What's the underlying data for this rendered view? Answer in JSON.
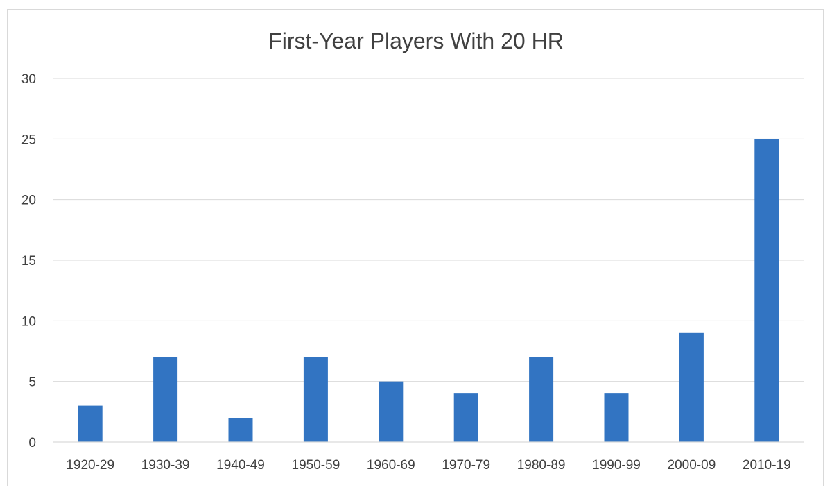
{
  "chart_data": {
    "type": "bar",
    "title": "First-Year Players With 20 HR",
    "xlabel": "",
    "ylabel": "",
    "categories": [
      "1920-29",
      "1930-39",
      "1940-49",
      "1950-59",
      "1960-69",
      "1970-79",
      "1980-89",
      "1990-99",
      "2000-09",
      "2010-19"
    ],
    "values": [
      3,
      7,
      2,
      7,
      5,
      4,
      7,
      4,
      9,
      25
    ],
    "ylim": [
      0,
      30
    ],
    "yticks": [
      "0",
      "5",
      "10",
      "15",
      "20",
      "25",
      "30"
    ],
    "grid": true,
    "legend": "none",
    "bar_color": "#3274c2"
  }
}
